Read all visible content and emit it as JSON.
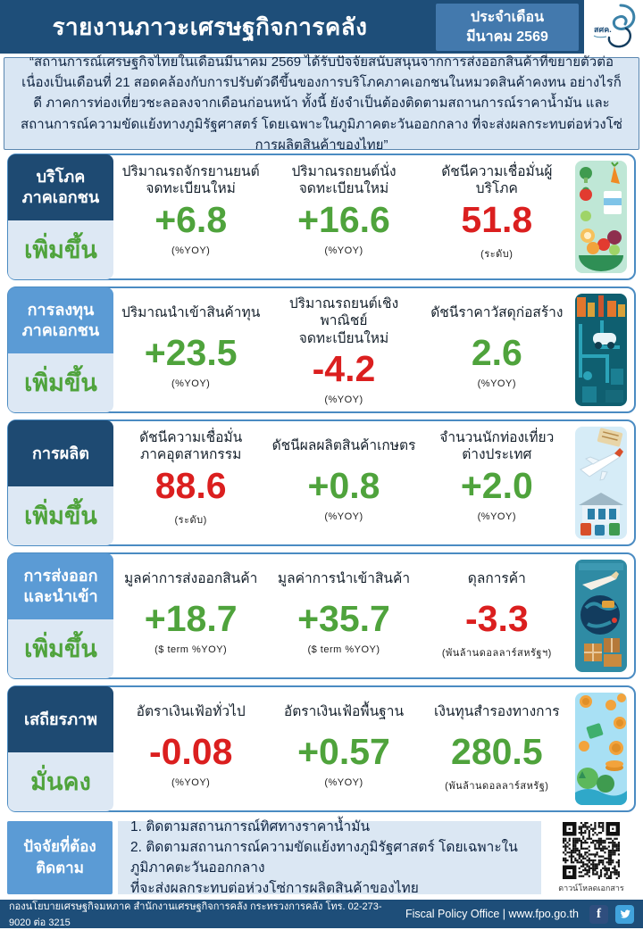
{
  "header": {
    "title": "รายงานภาวะเศรษฐกิจการคลัง",
    "period_label": "ประจำเดือน",
    "period_value": "มีนาคม 2569",
    "logo_text": "สศค."
  },
  "summary_quote": "“สถานการณ์เศรษฐกิจไทยในเดือนมีนาคม 2569 ได้รับปัจจัยสนับสนุนจากการส่งออกสินค้าที่ขยายตัวต่อเนื่องเป็นเดือนที่ 21 สอดคล้องกับการปรับตัวดีขึ้นของการบริโภคภาคเอกชนในหมวดสินค้าคงทน อย่างไรก็ดี ภาคการท่องเที่ยวชะลอลงจากเดือนก่อนหน้า ทั้งนี้ ยังจำเป็นต้องติดตามสถานการณ์ราคาน้ำมัน และสถานการณ์ความขัดแย้งทางภูมิรัฐศาสตร์ โดยเฉพาะในภูมิภาคตะวันออกกลาง ที่จะส่งผลกระทบต่อห่วงโซ่การผลิตสินค้าของไทย”",
  "sections": [
    {
      "category": "บริโภค\nภาคเอกชน",
      "trend": "เพิ่มขึ้น",
      "icon": "groceries-icon",
      "metrics": [
        {
          "label": "ปริมาณรถจักรยานยนต์\nจดทะเบียนใหม่",
          "value": "+6.8",
          "unit": "(%YOY)",
          "color": "green"
        },
        {
          "label": "ปริมาณรถยนต์นั่ง\nจดทะเบียนใหม่",
          "value": "+16.6",
          "unit": "(%YOY)",
          "color": "green"
        },
        {
          "label": "ดัชนีความเชื่อมั่นผู้บริโภค",
          "value": "51.8",
          "unit": "(ระดับ)",
          "color": "red"
        }
      ]
    },
    {
      "category": "การลงทุน\nภาคเอกชน",
      "trend": "เพิ่มขึ้น",
      "icon": "industry-icon",
      "metrics": [
        {
          "label": "ปริมาณนำเข้าสินค้าทุน",
          "value": "+23.5",
          "unit": "(%YOY)",
          "color": "green"
        },
        {
          "label": "ปริมาณรถยนต์เชิงพาณิชย์\nจดทะเบียนใหม่",
          "value": "-4.2",
          "unit": "(%YOY)",
          "color": "red"
        },
        {
          "label": "ดัชนีราคาวัสดุก่อสร้าง",
          "value": "2.6",
          "unit": "(%YOY)",
          "color": "green"
        }
      ]
    },
    {
      "category": "การผลิต",
      "trend": "เพิ่มขึ้น",
      "icon": "travel-icon",
      "metrics": [
        {
          "label": "ดัชนีความเชื่อมั่น\nภาคอุตสาหกรรม",
          "value": "88.6",
          "unit": "(ระดับ)",
          "color": "red"
        },
        {
          "label": "ดัชนีผลผลิตสินค้าเกษตร",
          "value": "+0.8",
          "unit": "(%YOY)",
          "color": "green"
        },
        {
          "label": "จำนวนนักท่องเที่ยว\nต่างประเทศ",
          "value": "+2.0",
          "unit": "(%YOY)",
          "color": "green"
        }
      ]
    },
    {
      "category": "การส่งออก\nและนำเข้า",
      "trend": "เพิ่มขึ้น",
      "icon": "logistics-icon",
      "metrics": [
        {
          "label": "มูลค่าการส่งออกสินค้า",
          "value": "+18.7",
          "unit": "($ term %YOY)",
          "color": "green"
        },
        {
          "label": "มูลค่าการนำเข้าสินค้า",
          "value": "+35.7",
          "unit": "($ term %YOY)",
          "color": "green"
        },
        {
          "label": "ดุลการค้า",
          "value": "-3.3",
          "unit": "(พันล้านดอลลาร์สหรัฐฯ)",
          "color": "red"
        }
      ]
    },
    {
      "category": "เสถียรภาพ",
      "trend": "มั่นคง",
      "icon": "money-icon",
      "metrics": [
        {
          "label": "อัตราเงินเฟ้อทั่วไป",
          "value": "-0.08",
          "unit": "(%YOY)",
          "color": "red"
        },
        {
          "label": "อัตราเงินเฟ้อพื้นฐาน",
          "value": "+0.57",
          "unit": "(%YOY)",
          "color": "green"
        },
        {
          "label": "เงินทุนสำรองทางการ",
          "value": "280.5",
          "unit": "(พันล้านดอลลาร์สหรัฐ)",
          "color": "green"
        }
      ]
    }
  ],
  "factors": {
    "heading": "ปัจจัยที่ต้อง\nติดตาม",
    "items": [
      "1. ติดตามสถานการณ์ทิศทางราคาน้ำมัน",
      "2. ติดตามสถานการณ์ความขัดแย้งทางภูมิรัฐศาสตร์  โดยเฉพาะในภูมิภาคตะวันออกกลาง",
      "ที่จะส่งผลกระทบต่อห่วงโซ่การผลิตสินค้าของไทย"
    ],
    "qr_caption": "ดาวน์โหลดเอกสาร"
  },
  "footer": {
    "left": "กองนโยบายเศรษฐกิจมหภาค สำนักงานเศรษฐกิจการคลัง กระทรวงการคลัง โทร. 02-273-9020 ต่อ 3215",
    "right": "Fiscal Policy Office | www.fpo.go.th",
    "facebook_label": "f",
    "social": [
      "facebook-icon",
      "twitter-icon"
    ]
  },
  "colors": {
    "navy": "#1E4E79",
    "medium_blue": "#5B9BD5",
    "period_box_blue": "#4379AD",
    "panel_border": "#4A8BC2",
    "light_blue_bg": "#DBE7F3",
    "label_bg": "#DDE8F4",
    "positive_green": "#4FA33C",
    "negative_red": "#DB1F1F",
    "twitter_blue": "#41A3DC"
  }
}
